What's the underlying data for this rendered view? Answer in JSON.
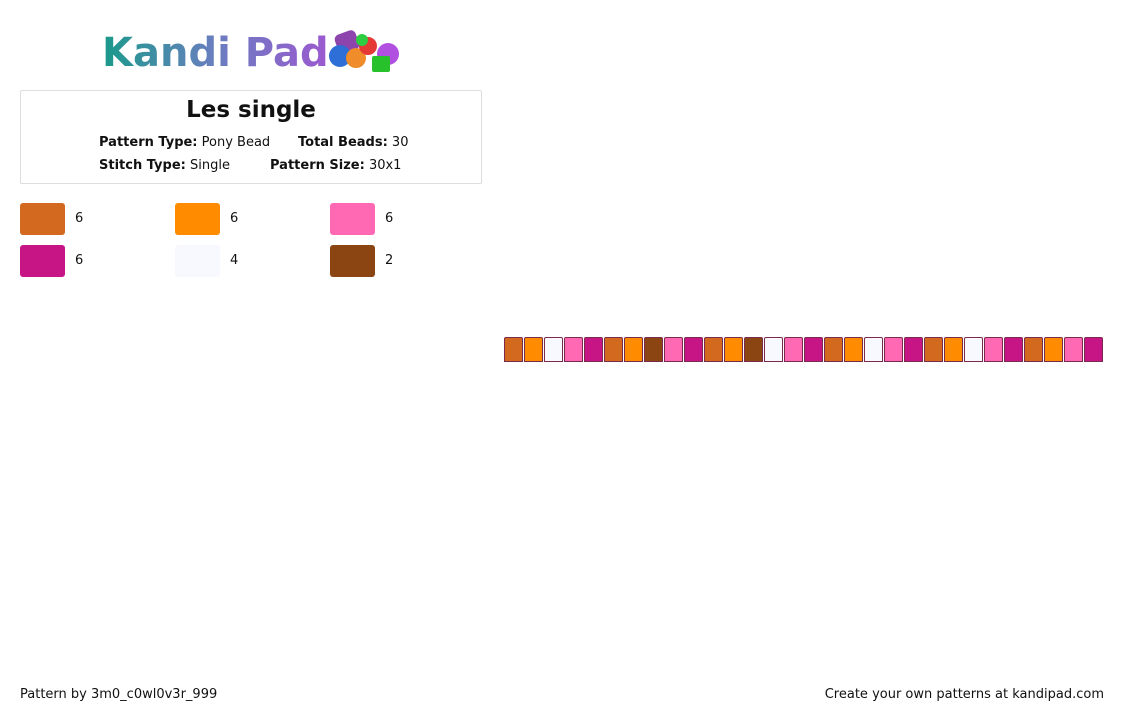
{
  "header": {
    "logo": "Kandi Pad"
  },
  "info": {
    "title": "Les single",
    "pattern_type_label": "Pattern Type:",
    "pattern_type": "Pony Bead",
    "total_beads_label": "Total Beads:",
    "total_beads": 30,
    "stitch_type_label": "Stitch Type:",
    "stitch_type": "Single",
    "pattern_size_label": "Pattern Size:",
    "pattern_size": "30x1"
  },
  "legend": [
    {
      "color": "#d2691e",
      "count": 6
    },
    {
      "color": "#ff8c00",
      "count": 6
    },
    {
      "color": "#ff69b4",
      "count": 6
    },
    {
      "color": "#c71585",
      "count": 6
    },
    {
      "color": "#f8f8ff",
      "count": 4
    },
    {
      "color": "#8b4513",
      "count": 2
    }
  ],
  "beads": [
    "#d2691e",
    "#ff8c00",
    "#f8f8ff",
    "#ff69b4",
    "#c71585",
    "#d2691e",
    "#ff8c00",
    "#8b4513",
    "#ff69b4",
    "#c71585",
    "#d2691e",
    "#ff8c00",
    "#8b4513",
    "#f8f8ff",
    "#ff69b4",
    "#c71585",
    "#d2691e",
    "#ff8c00",
    "#f8f8ff",
    "#ff69b4",
    "#c71585",
    "#d2691e",
    "#ff8c00",
    "#f8f8ff",
    "#ff69b4",
    "#c71585",
    "#d2691e",
    "#ff8c00",
    "#ff69b4",
    "#c71585"
  ],
  "footer": {
    "left": "Pattern by 3m0_c0wl0v3r_999",
    "right": "Create your own patterns at kandipad.com"
  }
}
